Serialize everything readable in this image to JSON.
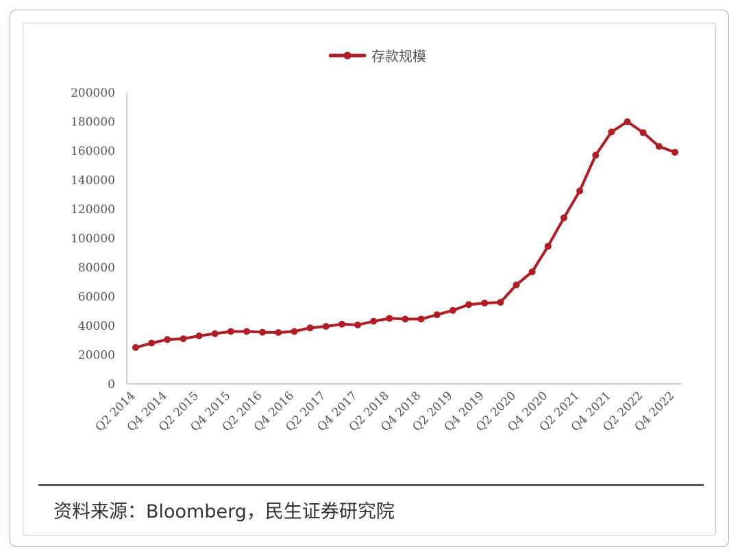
{
  "chart_data": {
    "type": "line",
    "legend": "存款规模",
    "legend_position": "top-center",
    "color": "#b11d24",
    "ylim": [
      0,
      200000
    ],
    "yticks": [
      "200000",
      "180000",
      "160000",
      "140000",
      "120000",
      "100000",
      "80000",
      "60000",
      "40000",
      "20000",
      "0"
    ],
    "xtick_labels": [
      "Q2 2014",
      "Q4 2014",
      "Q2 2015",
      "Q4 2015",
      "Q2 2016",
      "Q4 2016",
      "Q2 2017",
      "Q4 2017",
      "Q2 2018",
      "Q4 2018",
      "Q2 2019",
      "Q4 2019",
      "Q2 2020",
      "Q4 2020",
      "Q2 2021",
      "Q4 2021",
      "Q2 2022",
      "Q4 2022"
    ],
    "x": [
      "Q2 2014",
      "Q3 2014",
      "Q4 2014",
      "Q1 2015",
      "Q2 2015",
      "Q3 2015",
      "Q4 2015",
      "Q1 2016",
      "Q2 2016",
      "Q3 2016",
      "Q4 2016",
      "Q1 2017",
      "Q2 2017",
      "Q3 2017",
      "Q4 2017",
      "Q1 2018",
      "Q2 2018",
      "Q3 2018",
      "Q4 2018",
      "Q1 2019",
      "Q2 2019",
      "Q3 2019",
      "Q4 2019",
      "Q1 2020",
      "Q2 2020",
      "Q3 2020",
      "Q4 2020",
      "Q1 2021",
      "Q2 2021",
      "Q3 2021",
      "Q4 2021",
      "Q1 2022",
      "Q2 2022",
      "Q3 2022",
      "Q4 2022"
    ],
    "values": [
      25000,
      28000,
      30500,
      31000,
      33000,
      34500,
      36000,
      36000,
      35500,
      35300,
      36000,
      38500,
      39500,
      41000,
      40500,
      43000,
      45000,
      44500,
      44500,
      47500,
      50500,
      54500,
      55500,
      56000,
      68000,
      77000,
      94500,
      114000,
      132500,
      157000,
      173000,
      180000,
      172500,
      163000,
      159000
    ],
    "grid": false
  },
  "source_note": "资料来源：Bloomberg，民生证券研究院"
}
